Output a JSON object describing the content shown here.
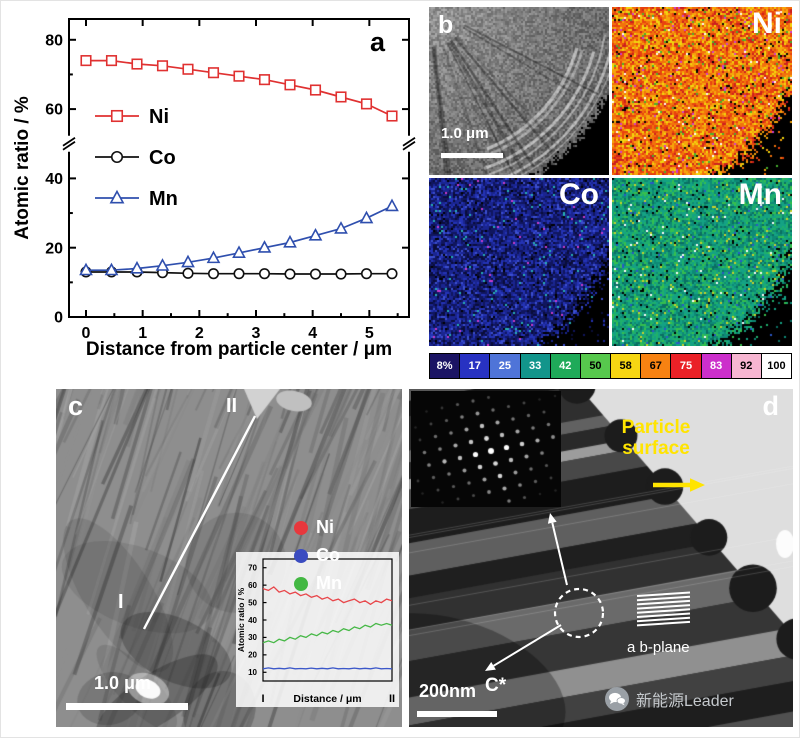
{
  "panel_a": {
    "label": "a"
  },
  "chart_data": [
    {
      "id": "atomic-ratio-vs-distance",
      "type": "line",
      "title": "",
      "xlabel": "Distance from particle center / μm",
      "ylabel": "Atomic ratio / %",
      "xlim": [
        -0.3,
        5.7
      ],
      "ylim": [
        0,
        86
      ],
      "xticks": [
        0,
        1,
        2,
        3,
        4,
        5
      ],
      "yticks": [
        0,
        20,
        40,
        60,
        80
      ],
      "axis_break_y": 50,
      "legend_position": "upper-left-inside",
      "series": [
        {
          "name": "Ni",
          "color": "#e03131",
          "marker": "square",
          "x": [
            0,
            0.45,
            0.9,
            1.35,
            1.8,
            2.25,
            2.7,
            3.15,
            3.6,
            4.05,
            4.5,
            4.95,
            5.4
          ],
          "y": [
            74,
            74,
            73,
            72.5,
            71.5,
            70.5,
            69.5,
            68.5,
            67,
            65.5,
            63.5,
            61.5,
            58
          ]
        },
        {
          "name": "Co",
          "color": "#101010",
          "marker": "circle",
          "x": [
            0,
            0.45,
            0.9,
            1.35,
            1.8,
            2.25,
            2.7,
            3.15,
            3.6,
            4.05,
            4.5,
            4.95,
            5.4
          ],
          "y": [
            13,
            13,
            13,
            12.8,
            12.6,
            12.5,
            12.5,
            12.5,
            12.4,
            12.4,
            12.4,
            12.5,
            12.5
          ]
        },
        {
          "name": "Mn",
          "color": "#2f4fae",
          "marker": "triangle",
          "x": [
            0,
            0.45,
            0.9,
            1.35,
            1.8,
            2.25,
            2.7,
            3.15,
            3.6,
            4.05,
            4.5,
            4.95,
            5.4
          ],
          "y": [
            13.5,
            13.5,
            14,
            14.8,
            15.8,
            17,
            18.5,
            20,
            21.5,
            23.5,
            25.5,
            28.5,
            32
          ]
        }
      ]
    },
    {
      "id": "line-scan-inset",
      "type": "line",
      "title": "",
      "xlabel": "Distance / μm",
      "ylabel": "Atomic ratio / %",
      "x_end_labels": [
        "I",
        "II"
      ],
      "xlim": [
        0,
        1
      ],
      "ylim": [
        5,
        75
      ],
      "yticks": [
        10,
        20,
        30,
        40,
        50,
        60,
        70
      ],
      "series": [
        {
          "name": "Ni",
          "color": "#e8474b",
          "y": [
            58,
            57,
            59,
            56,
            57,
            55,
            56,
            54,
            55,
            53,
            54,
            52,
            53,
            51,
            52,
            50,
            51,
            52,
            50,
            51,
            49,
            51,
            50,
            52,
            51
          ]
        },
        {
          "name": "Mn",
          "color": "#47b847",
          "y": [
            27,
            28,
            27,
            29,
            28,
            30,
            29,
            31,
            30,
            32,
            31,
            33,
            32,
            34,
            33,
            35,
            34,
            36,
            35,
            37,
            36,
            38,
            37,
            38,
            37
          ]
        },
        {
          "name": "Co",
          "color": "#3b57c9",
          "y": [
            12,
            12.5,
            12,
            12.3,
            12,
            12.5,
            12,
            12.2,
            12,
            12.4,
            12,
            12.3,
            12,
            12.5,
            12,
            12.2,
            12,
            12.4,
            12,
            12.3,
            12,
            12.5,
            12,
            12.2,
            12
          ]
        }
      ]
    }
  ],
  "panel_b": {
    "label": "b",
    "scalebar": "1.0 μm",
    "maps": [
      {
        "name": "Ni",
        "palette": [
          [
            "#e8420e",
            4
          ],
          [
            "#f2720c",
            5
          ],
          [
            "#f6a60b",
            4
          ],
          [
            "#f2d70e",
            2
          ],
          [
            "#cc1f1f",
            2
          ],
          [
            "#46b12f",
            0.4
          ],
          [
            "#d23bd2",
            0.25
          ],
          [
            "#ffffff",
            0.2
          ]
        ]
      },
      {
        "name": "Co",
        "palette": [
          [
            "#10165f",
            5
          ],
          [
            "#1a2590",
            5
          ],
          [
            "#2433b5",
            3
          ],
          [
            "#0a0d3a",
            3
          ],
          [
            "#3c4fd0",
            1
          ],
          [
            "#27b0b5",
            0.3
          ],
          [
            "#cc3bcc",
            0.15
          ]
        ]
      },
      {
        "name": "Mn",
        "palette": [
          [
            "#0e8a76",
            4
          ],
          [
            "#14a284",
            5
          ],
          [
            "#1fb06b",
            4
          ],
          [
            "#36bf4e",
            2
          ],
          [
            "#0a6f63",
            3
          ],
          [
            "#c9d42a",
            0.5
          ],
          [
            "#2a57c8",
            0.3
          ],
          [
            "#ffffff",
            0.2
          ]
        ]
      }
    ],
    "colorbar": [
      {
        "label": "8%",
        "color": "#1b1464",
        "text": "#ffffff"
      },
      {
        "label": "17",
        "color": "#2832c2",
        "text": "#ffffff"
      },
      {
        "label": "25",
        "color": "#4f74d8",
        "text": "#ffffff"
      },
      {
        "label": "33",
        "color": "#12958b",
        "text": "#ffffff"
      },
      {
        "label": "42",
        "color": "#1faa59",
        "text": "#ffffff"
      },
      {
        "label": "50",
        "color": "#57c84d",
        "text": "#000000"
      },
      {
        "label": "58",
        "color": "#f6d613",
        "text": "#000000"
      },
      {
        "label": "67",
        "color": "#f78212",
        "text": "#000000"
      },
      {
        "label": "75",
        "color": "#ea2127",
        "text": "#ffffff"
      },
      {
        "label": "83",
        "color": "#cc2fcb",
        "text": "#ffffff"
      },
      {
        "label": "92",
        "color": "#f7b6d2",
        "text": "#000000"
      },
      {
        "label": "100",
        "color": "#ffffff",
        "text": "#000000"
      }
    ]
  },
  "panel_c": {
    "label": "c",
    "point_start": "I",
    "point_end": "II",
    "scalebar": "1.0 μm",
    "legend": [
      {
        "name": "Ni",
        "color": "#e8383d"
      },
      {
        "name": "Co",
        "color": "#3b4cc0"
      },
      {
        "name": "Mn",
        "color": "#43b843"
      }
    ]
  },
  "panel_d": {
    "label": "d",
    "particle_surface": "Particle surface",
    "c_star": "C*",
    "ab_plane": "a b-plane",
    "scalebar": "200nm"
  },
  "watermark": {
    "text": "新能源Leader"
  }
}
